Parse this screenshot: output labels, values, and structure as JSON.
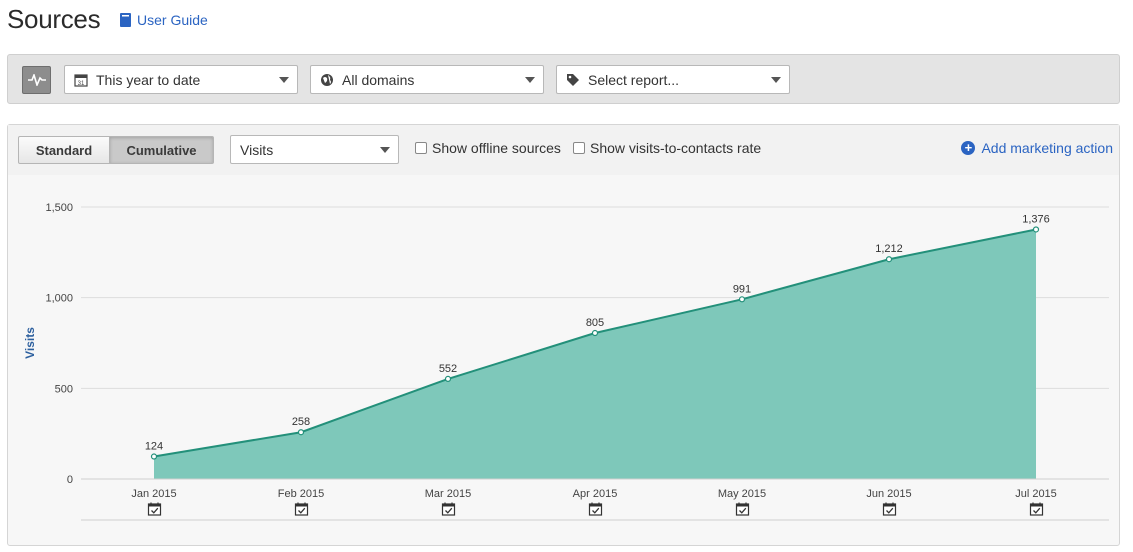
{
  "page": {
    "title": "Sources",
    "guide_label": "User Guide"
  },
  "filters": {
    "date_range": "This year to date",
    "domains": "All domains",
    "report": "Select report..."
  },
  "chart_toolbar": {
    "standard_label": "Standard",
    "cumulative_label": "Cumulative",
    "metric": "Visits",
    "offline_label": "Show offline sources",
    "rate_label": "Show visits-to-contacts rate",
    "add_action_label": "Add marketing action"
  },
  "colors": {
    "area_fill": "#7ec8ba",
    "line": "#23907a",
    "link": "#2b64c2"
  },
  "chart_data": {
    "type": "area",
    "categories": [
      "Jan 2015",
      "Feb 2015",
      "Mar 2015",
      "Apr 2015",
      "May 2015",
      "Jun 2015",
      "Jul 2015"
    ],
    "series": [
      {
        "values": [
          124,
          258,
          552,
          805,
          991,
          1212,
          1376
        ]
      }
    ],
    "data_labels": [
      "124",
      "258",
      "552",
      "805",
      "991",
      "1,212",
      "1,376"
    ],
    "ylabel": "Visits",
    "ylim": [
      0,
      1500
    ],
    "yticks": [
      0,
      500,
      1000,
      1500
    ],
    "ytick_labels": [
      "0",
      "500",
      "1,000",
      "1,500"
    ],
    "grid": true,
    "legend": "none"
  }
}
